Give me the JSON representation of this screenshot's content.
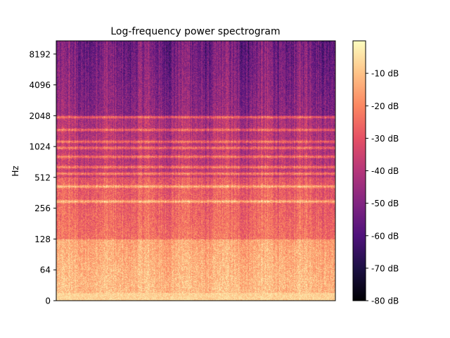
{
  "chart_data": {
    "type": "heatmap",
    "title": "Log-frequency power spectrogram",
    "xlabel": "",
    "ylabel": "Hz",
    "y_scale": "log2 (symlog near 0)",
    "y_ticks": [
      "0",
      "64",
      "128",
      "256",
      "512",
      "1024",
      "2048",
      "4096",
      "8192"
    ],
    "y_tick_values": [
      0,
      64,
      128,
      256,
      512,
      1024,
      2048,
      4096,
      8192
    ],
    "y_range_hz": [
      0,
      11025
    ],
    "x_ticks": [],
    "colorbar": {
      "colormap": "magma",
      "label_unit": "dB",
      "range": [
        -80,
        0
      ],
      "ticks": [
        "-10 dB",
        "-20 dB",
        "-30 dB",
        "-40 dB",
        "-50 dB",
        "-60 dB",
        "-70 dB",
        "-80 dB"
      ],
      "tick_values": [
        -10,
        -20,
        -30,
        -40,
        -50,
        -60,
        -70,
        -80
      ]
    },
    "approx_level_by_band_db": [
      {
        "band_hz": "0-128",
        "level_db": -12
      },
      {
        "band_hz": "128-512",
        "level_db": -28
      },
      {
        "band_hz": "512-2048",
        "level_db": -42
      },
      {
        "band_hz": "2048-11025",
        "level_db": -52
      }
    ],
    "harmonic_bands_hz": [
      300,
      420,
      560,
      650,
      820,
      1000,
      1150,
      1500,
      2000
    ]
  },
  "colors": {
    "magma": [
      "#000004",
      "#1c1044",
      "#4f127b",
      "#812581",
      "#b5367a",
      "#e55064",
      "#fb8761",
      "#fec287",
      "#fcfdbf"
    ]
  }
}
